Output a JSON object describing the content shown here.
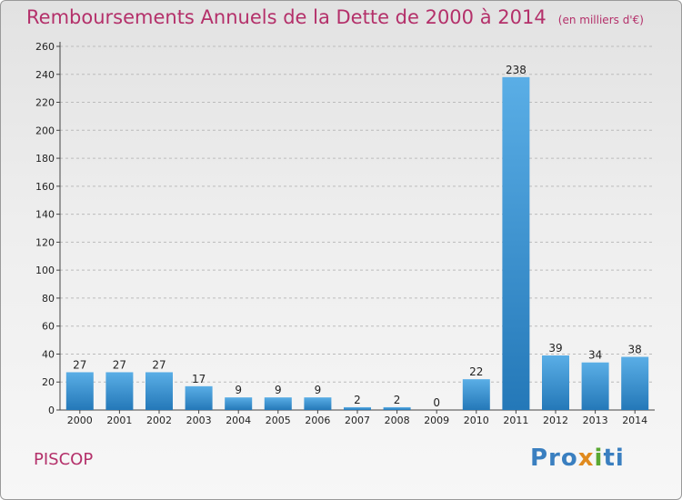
{
  "header": {
    "title": "Remboursements Annuels de la Dette de 2000 à 2014",
    "unit": "(en milliers d'€)"
  },
  "footer": {
    "town": "PISCOP",
    "logo": [
      "Pro",
      "x",
      "i",
      "ti"
    ]
  },
  "colors": {
    "title": "#b4306a",
    "bar_light": "#5aaee6",
    "bar_dark": "#2478b8",
    "grid": "#bbbbbb"
  },
  "chart_data": {
    "type": "bar",
    "title": "Remboursements Annuels de la Dette de 2000 à 2014",
    "ylabel": "",
    "xlabel": "",
    "categories": [
      "2000",
      "2001",
      "2002",
      "2003",
      "2004",
      "2005",
      "2006",
      "2007",
      "2008",
      "2009",
      "2010",
      "2011",
      "2012",
      "2013",
      "2014"
    ],
    "values": [
      27,
      27,
      27,
      17,
      9,
      9,
      9,
      2,
      2,
      0,
      22,
      238,
      39,
      34,
      38
    ],
    "ylim": [
      0,
      260
    ],
    "yticks": [
      0,
      20,
      40,
      60,
      80,
      100,
      120,
      140,
      160,
      180,
      200,
      220,
      240,
      260
    ],
    "grid": true,
    "data_labels": true
  }
}
